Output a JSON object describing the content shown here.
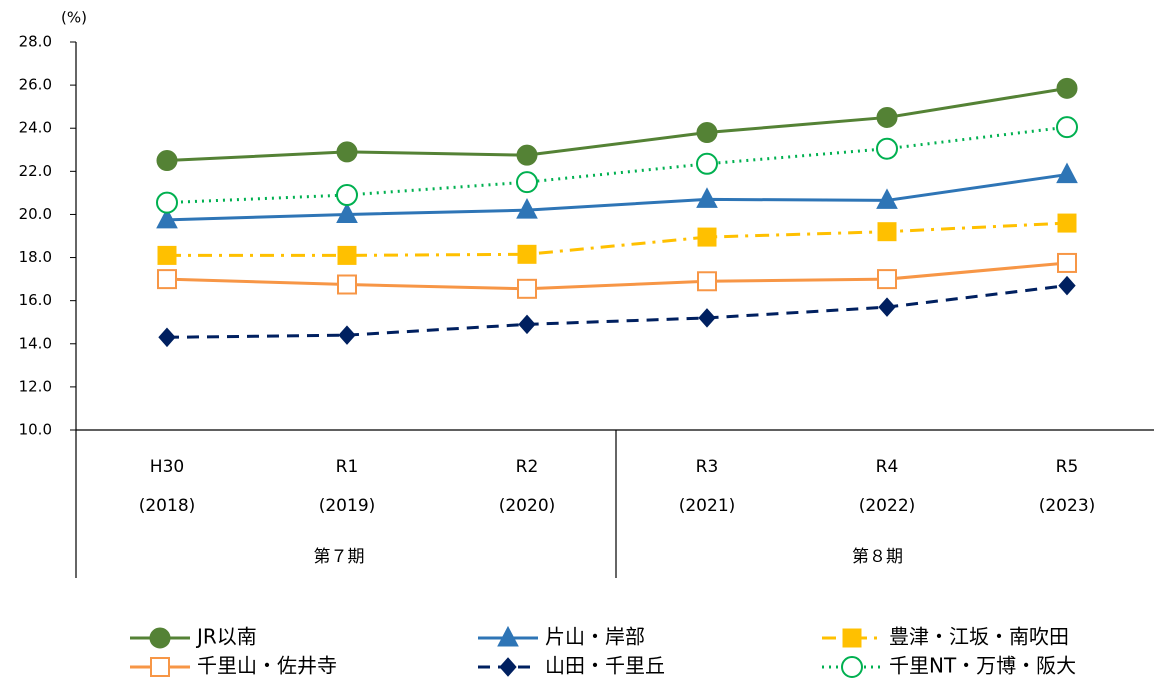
{
  "chart_data": {
    "type": "line",
    "y_unit_label": "(%)",
    "categories": [
      "H30",
      "R1",
      "R2",
      "R3",
      "R4",
      "R5"
    ],
    "category_sublabels": [
      "(2018)",
      "(2019)",
      "(2020)",
      "(2021)",
      "(2022)",
      "(2023)"
    ],
    "category_groups": [
      {
        "label": "第７期",
        "size": 3
      },
      {
        "label": "第８期",
        "size": 3
      }
    ],
    "ylim": [
      10,
      28
    ],
    "yticks": [
      {
        "value": 10,
        "label": "10.0"
      },
      {
        "value": 12,
        "label": "12.0"
      },
      {
        "value": 14,
        "label": "14.0"
      },
      {
        "value": 16,
        "label": "16.0"
      },
      {
        "value": 18,
        "label": "18.0"
      },
      {
        "value": 20,
        "label": "20.0"
      },
      {
        "value": 22,
        "label": "22.0"
      },
      {
        "value": 24,
        "label": "24.0"
      },
      {
        "value": 26,
        "label": "26.0"
      },
      {
        "value": 28,
        "label": "28.0"
      }
    ],
    "grid": false,
    "series": [
      {
        "name": "JR以南",
        "color": "#548235",
        "dash": "solid",
        "marker": "circle",
        "filled": true,
        "values": [
          22.5,
          22.9,
          22.75,
          23.8,
          24.5,
          25.85
        ]
      },
      {
        "name": "片山・岸部",
        "color": "#2e75b6",
        "dash": "solid",
        "marker": "triangle",
        "filled": true,
        "values": [
          19.75,
          20.0,
          20.2,
          20.7,
          20.65,
          21.85
        ]
      },
      {
        "name": "豊津・江坂・南吹田",
        "color": "#ffc000",
        "dash": "dashdot",
        "marker": "square",
        "filled": true,
        "values": [
          18.1,
          18.1,
          18.15,
          18.95,
          19.2,
          19.6
        ]
      },
      {
        "name": "千里山・佐井寺",
        "color": "#f79646",
        "dash": "solid",
        "marker": "square",
        "filled": false,
        "values": [
          17.0,
          16.75,
          16.55,
          16.9,
          17.0,
          17.75
        ]
      },
      {
        "name": "山田・千里丘",
        "color": "#002060",
        "dash": "dashed",
        "marker": "diamond",
        "filled": true,
        "values": [
          14.3,
          14.4,
          14.9,
          15.2,
          15.7,
          16.7
        ]
      },
      {
        "name": "千里NT・万博・阪大",
        "color": "#00b050",
        "dash": "dotted",
        "marker": "circle",
        "filled": false,
        "values": [
          20.55,
          20.9,
          21.5,
          22.35,
          23.05,
          24.05
        ]
      }
    ]
  }
}
